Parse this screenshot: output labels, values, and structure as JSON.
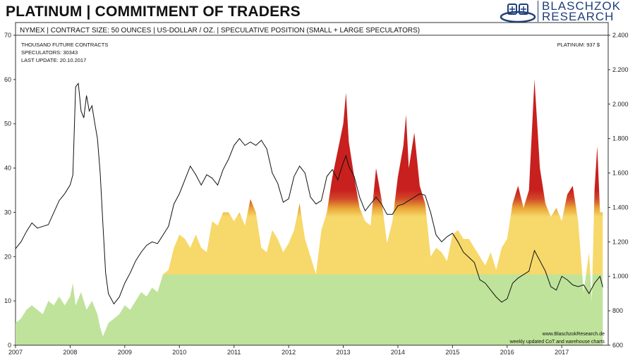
{
  "title": "PLATINUM | COMMITMENT OF TRADERS",
  "logo": {
    "line1": "BLASCHZOK",
    "line2": "RESEARCH"
  },
  "header_info": "NYMEX | CONTRACT SIZE: 50 OUNCES | US-DOLLAR / OZ. | SPECULATIVE POSITION (SMALL + LARGE SPECULATORS)",
  "notes": {
    "line1": "THOUSAND FUTURE CONTRACTS",
    "line2": "SPECULATORS: 30343",
    "line3": "LAST UPDATE: 20.10.2017"
  },
  "price_label": "PLATINUM: 937 $",
  "footer": {
    "line1": "www.BlaschzokResearch.de",
    "line2": "weekly updated CoT and warehouse charts"
  },
  "colors": {
    "green": "#bfe39a",
    "yellow": "#f7d86a",
    "orange": "#e8a436",
    "red": "#c8201e",
    "line": "#111111",
    "axis": "#333333"
  },
  "chart_data": {
    "type": "area",
    "x_ticks": [
      "2007",
      "2008",
      "2009",
      "2010",
      "2011",
      "2012",
      "2013",
      "2014",
      "2015",
      "2016",
      "2017"
    ],
    "xlim": [
      2007.0,
      2017.85
    ],
    "ylim": [
      0,
      70
    ],
    "y_ticks": [
      0,
      10,
      20,
      30,
      40,
      50,
      60,
      70
    ],
    "y2lim": [
      600,
      2400
    ],
    "y2_ticks": [
      "600",
      "800",
      "1.000",
      "1.200",
      "1.400",
      "1.600",
      "1.800",
      "2.000",
      "2.200",
      "2.400"
    ],
    "color_bands": [
      {
        "from": 0,
        "to": 16,
        "color": "green"
      },
      {
        "from": 16,
        "to": 30,
        "color": "yellow"
      },
      {
        "from": 30,
        "to": 34,
        "color": "orange"
      },
      {
        "from": 34,
        "to": 70,
        "color": "red"
      }
    ],
    "series": [
      {
        "axis": "left",
        "style": "area",
        "points": [
          [
            2007.0,
            5
          ],
          [
            2007.1,
            6
          ],
          [
            2007.2,
            8
          ],
          [
            2007.3,
            9
          ],
          [
            2007.4,
            8
          ],
          [
            2007.5,
            7
          ],
          [
            2007.6,
            10
          ],
          [
            2007.7,
            9
          ],
          [
            2007.8,
            11
          ],
          [
            2007.9,
            9
          ],
          [
            2008.0,
            11
          ],
          [
            2008.05,
            14
          ],
          [
            2008.1,
            9
          ],
          [
            2008.2,
            12
          ],
          [
            2008.3,
            8
          ],
          [
            2008.4,
            10
          ],
          [
            2008.5,
            7
          ],
          [
            2008.55,
            4
          ],
          [
            2008.6,
            2
          ],
          [
            2008.7,
            5
          ],
          [
            2008.8,
            6
          ],
          [
            2008.9,
            7
          ],
          [
            2009.0,
            9
          ],
          [
            2009.1,
            8
          ],
          [
            2009.2,
            10
          ],
          [
            2009.3,
            12
          ],
          [
            2009.4,
            11
          ],
          [
            2009.5,
            13
          ],
          [
            2009.6,
            12
          ],
          [
            2009.7,
            16
          ],
          [
            2009.8,
            17
          ],
          [
            2009.9,
            22
          ],
          [
            2010.0,
            25
          ],
          [
            2010.1,
            24
          ],
          [
            2010.2,
            22
          ],
          [
            2010.3,
            25
          ],
          [
            2010.4,
            22
          ],
          [
            2010.5,
            21
          ],
          [
            2010.6,
            28
          ],
          [
            2010.7,
            27
          ],
          [
            2010.8,
            30
          ],
          [
            2010.9,
            30
          ],
          [
            2011.0,
            28
          ],
          [
            2011.1,
            30
          ],
          [
            2011.2,
            27
          ],
          [
            2011.3,
            33
          ],
          [
            2011.4,
            30
          ],
          [
            2011.5,
            22
          ],
          [
            2011.6,
            21
          ],
          [
            2011.7,
            26
          ],
          [
            2011.8,
            24
          ],
          [
            2011.9,
            21
          ],
          [
            2012.0,
            23
          ],
          [
            2012.1,
            26
          ],
          [
            2012.2,
            32
          ],
          [
            2012.3,
            24
          ],
          [
            2012.4,
            20
          ],
          [
            2012.5,
            16
          ],
          [
            2012.6,
            26
          ],
          [
            2012.7,
            30
          ],
          [
            2012.8,
            38
          ],
          [
            2012.9,
            44
          ],
          [
            2013.0,
            50
          ],
          [
            2013.05,
            57
          ],
          [
            2013.1,
            46
          ],
          [
            2013.2,
            38
          ],
          [
            2013.3,
            31
          ],
          [
            2013.4,
            28
          ],
          [
            2013.5,
            27
          ],
          [
            2013.6,
            40
          ],
          [
            2013.7,
            33
          ],
          [
            2013.8,
            23
          ],
          [
            2013.9,
            28
          ],
          [
            2014.0,
            38
          ],
          [
            2014.1,
            45
          ],
          [
            2014.15,
            52
          ],
          [
            2014.2,
            40
          ],
          [
            2014.3,
            48
          ],
          [
            2014.4,
            36
          ],
          [
            2014.5,
            32
          ],
          [
            2014.6,
            20
          ],
          [
            2014.7,
            22
          ],
          [
            2014.8,
            21
          ],
          [
            2014.9,
            19
          ],
          [
            2015.0,
            25
          ],
          [
            2015.1,
            26
          ],
          [
            2015.2,
            24
          ],
          [
            2015.3,
            24
          ],
          [
            2015.4,
            22
          ],
          [
            2015.5,
            20
          ],
          [
            2015.6,
            18
          ],
          [
            2015.7,
            21
          ],
          [
            2015.8,
            17
          ],
          [
            2015.9,
            22
          ],
          [
            2016.0,
            24
          ],
          [
            2016.1,
            32
          ],
          [
            2016.2,
            36
          ],
          [
            2016.3,
            31
          ],
          [
            2016.4,
            35
          ],
          [
            2016.5,
            60
          ],
          [
            2016.55,
            50
          ],
          [
            2016.6,
            40
          ],
          [
            2016.7,
            32
          ],
          [
            2016.8,
            29
          ],
          [
            2016.9,
            31
          ],
          [
            2017.0,
            28
          ],
          [
            2017.1,
            34
          ],
          [
            2017.2,
            36
          ],
          [
            2017.3,
            28
          ],
          [
            2017.4,
            12
          ],
          [
            2017.5,
            21
          ],
          [
            2017.55,
            10
          ],
          [
            2017.6,
            35
          ],
          [
            2017.65,
            45
          ],
          [
            2017.7,
            30
          ],
          [
            2017.75,
            30
          ]
        ]
      },
      {
        "axis": "right",
        "style": "line",
        "points": [
          [
            2007.0,
            1160
          ],
          [
            2007.1,
            1200
          ],
          [
            2007.2,
            1260
          ],
          [
            2007.3,
            1310
          ],
          [
            2007.4,
            1280
          ],
          [
            2007.5,
            1290
          ],
          [
            2007.6,
            1300
          ],
          [
            2007.7,
            1370
          ],
          [
            2007.8,
            1440
          ],
          [
            2007.9,
            1480
          ],
          [
            2008.0,
            1530
          ],
          [
            2008.05,
            1590
          ],
          [
            2008.1,
            2100
          ],
          [
            2008.15,
            2120
          ],
          [
            2008.2,
            1960
          ],
          [
            2008.25,
            1920
          ],
          [
            2008.3,
            2050
          ],
          [
            2008.35,
            1960
          ],
          [
            2008.4,
            1990
          ],
          [
            2008.45,
            1890
          ],
          [
            2008.5,
            1800
          ],
          [
            2008.55,
            1600
          ],
          [
            2008.6,
            1300
          ],
          [
            2008.65,
            1020
          ],
          [
            2008.7,
            900
          ],
          [
            2008.8,
            840
          ],
          [
            2008.9,
            880
          ],
          [
            2009.0,
            960
          ],
          [
            2009.1,
            1020
          ],
          [
            2009.2,
            1090
          ],
          [
            2009.3,
            1140
          ],
          [
            2009.4,
            1180
          ],
          [
            2009.5,
            1200
          ],
          [
            2009.6,
            1190
          ],
          [
            2009.7,
            1240
          ],
          [
            2009.8,
            1290
          ],
          [
            2009.9,
            1420
          ],
          [
            2010.0,
            1480
          ],
          [
            2010.1,
            1560
          ],
          [
            2010.2,
            1640
          ],
          [
            2010.3,
            1590
          ],
          [
            2010.4,
            1530
          ],
          [
            2010.5,
            1590
          ],
          [
            2010.6,
            1570
          ],
          [
            2010.7,
            1530
          ],
          [
            2010.8,
            1620
          ],
          [
            2010.9,
            1680
          ],
          [
            2011.0,
            1760
          ],
          [
            2011.1,
            1800
          ],
          [
            2011.2,
            1760
          ],
          [
            2011.3,
            1780
          ],
          [
            2011.4,
            1760
          ],
          [
            2011.5,
            1790
          ],
          [
            2011.6,
            1740
          ],
          [
            2011.7,
            1600
          ],
          [
            2011.8,
            1540
          ],
          [
            2011.9,
            1430
          ],
          [
            2012.0,
            1450
          ],
          [
            2012.1,
            1580
          ],
          [
            2012.2,
            1640
          ],
          [
            2012.3,
            1600
          ],
          [
            2012.4,
            1460
          ],
          [
            2012.5,
            1420
          ],
          [
            2012.6,
            1440
          ],
          [
            2012.7,
            1580
          ],
          [
            2012.8,
            1620
          ],
          [
            2012.9,
            1560
          ],
          [
            2013.0,
            1660
          ],
          [
            2013.05,
            1700
          ],
          [
            2013.1,
            1640
          ],
          [
            2013.2,
            1580
          ],
          [
            2013.3,
            1460
          ],
          [
            2013.4,
            1380
          ],
          [
            2013.5,
            1420
          ],
          [
            2013.6,
            1460
          ],
          [
            2013.7,
            1420
          ],
          [
            2013.8,
            1360
          ],
          [
            2013.9,
            1360
          ],
          [
            2014.0,
            1410
          ],
          [
            2014.1,
            1420
          ],
          [
            2014.2,
            1440
          ],
          [
            2014.3,
            1460
          ],
          [
            2014.4,
            1480
          ],
          [
            2014.5,
            1470
          ],
          [
            2014.6,
            1370
          ],
          [
            2014.7,
            1240
          ],
          [
            2014.8,
            1200
          ],
          [
            2014.9,
            1230
          ],
          [
            2015.0,
            1250
          ],
          [
            2015.1,
            1200
          ],
          [
            2015.2,
            1140
          ],
          [
            2015.3,
            1110
          ],
          [
            2015.4,
            1080
          ],
          [
            2015.5,
            980
          ],
          [
            2015.6,
            960
          ],
          [
            2015.7,
            920
          ],
          [
            2015.8,
            880
          ],
          [
            2015.9,
            850
          ],
          [
            2016.0,
            870
          ],
          [
            2016.1,
            960
          ],
          [
            2016.2,
            990
          ],
          [
            2016.3,
            1010
          ],
          [
            2016.4,
            1030
          ],
          [
            2016.5,
            1150
          ],
          [
            2016.6,
            1090
          ],
          [
            2016.7,
            1030
          ],
          [
            2016.8,
            940
          ],
          [
            2016.9,
            920
          ],
          [
            2017.0,
            1000
          ],
          [
            2017.1,
            980
          ],
          [
            2017.2,
            950
          ],
          [
            2017.3,
            940
          ],
          [
            2017.4,
            950
          ],
          [
            2017.5,
            900
          ],
          [
            2017.6,
            960
          ],
          [
            2017.7,
            1000
          ],
          [
            2017.75,
            937
          ]
        ]
      }
    ]
  }
}
